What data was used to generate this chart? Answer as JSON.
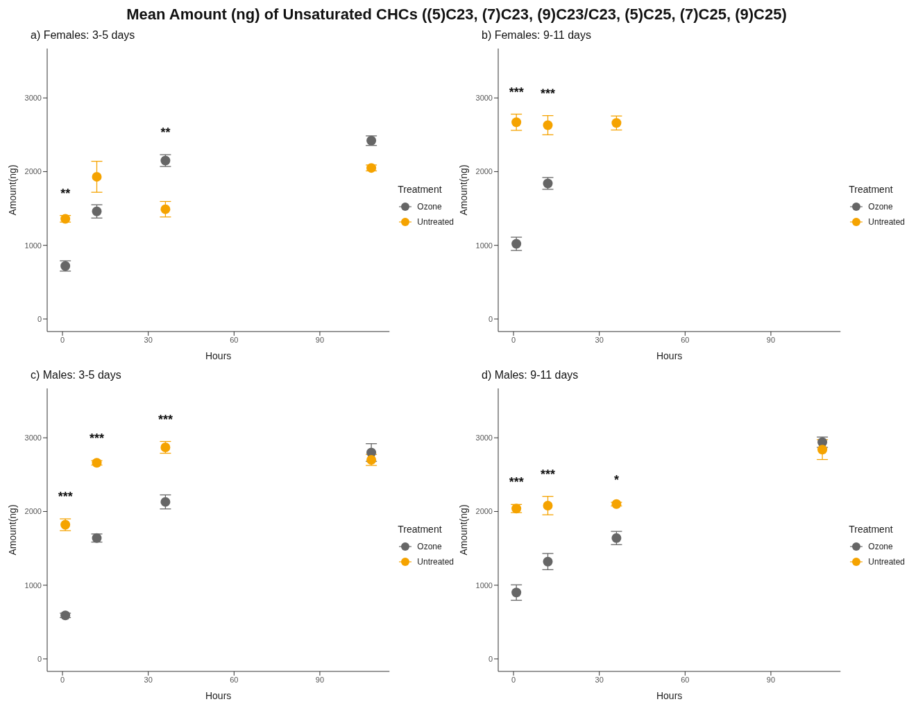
{
  "chart_data": [
    {
      "type": "scatter",
      "title": "Mean Amount (ng) of Unsaturated CHCs ((5)C23, (7)C23, (9)C23/C23, (5)C25, (7)C25, (9)C25)",
      "subtitle": "a) Females: 3-5 days",
      "xlabel": "Hours",
      "ylabel": "Amount(ng)",
      "legend_title": "Treatment",
      "legend": "right",
      "marker": "circle",
      "grid": false,
      "x": [
        1,
        12,
        36,
        108
      ],
      "xlim": [
        -5.35,
        114.35
      ],
      "xticks": [
        0,
        30,
        60,
        90
      ],
      "ylim": [
        -170,
        3670
      ],
      "yticks": [
        0,
        1000,
        2000,
        3000
      ],
      "series": [
        {
          "name": "Ozone",
          "color": "#666666",
          "values": [
            720,
            1460,
            2150,
            2420
          ],
          "errors": [
            70,
            90,
            80,
            65
          ]
        },
        {
          "name": "Untreated",
          "color": "#f5a300",
          "values": [
            1360,
            1930,
            1490,
            2050
          ],
          "errors": [
            45,
            210,
            105,
            40
          ]
        }
      ],
      "annotations": [
        {
          "text": "**",
          "x": 1,
          "y": 1360
        },
        {
          "text": "**",
          "x": 36,
          "y": 2150
        }
      ]
    },
    {
      "type": "scatter",
      "title": "b) Females: 9-11 days",
      "xlabel": "Hours",
      "ylabel": "Amount(ng)",
      "legend_title": "Treatment",
      "legend": "right",
      "marker": "circle",
      "grid": false,
      "x": [
        1,
        12,
        36
      ],
      "xlim": [
        -5.35,
        114.35
      ],
      "xticks": [
        0,
        30,
        60,
        90
      ],
      "ylim": [
        -170,
        3670
      ],
      "yticks": [
        0,
        1000,
        2000,
        3000
      ],
      "series": [
        {
          "name": "Ozone",
          "color": "#666666",
          "values": [
            1020,
            1840,
            null
          ],
          "errors": [
            90,
            80,
            null
          ]
        },
        {
          "name": "Untreated",
          "color": "#f5a300",
          "values": [
            2670,
            2630,
            2660
          ],
          "errors": [
            110,
            130,
            95
          ]
        }
      ],
      "annotations": [
        {
          "text": "***",
          "x": 1,
          "y": 2670
        },
        {
          "text": "***",
          "x": 12,
          "y": 2630
        }
      ]
    },
    {
      "type": "scatter",
      "title": "c) Males: 3-5 days",
      "xlabel": "Hours",
      "ylabel": "Amount(ng)",
      "legend_title": "Treatment",
      "legend": "right",
      "marker": "circle",
      "grid": false,
      "x": [
        1,
        12,
        36,
        108
      ],
      "xlim": [
        -5.35,
        114.35
      ],
      "xticks": [
        0,
        30,
        60,
        90
      ],
      "ylim": [
        -170,
        3670
      ],
      "yticks": [
        0,
        1000,
        2000,
        3000
      ],
      "series": [
        {
          "name": "Ozone",
          "color": "#666666",
          "values": [
            590,
            1640,
            2130,
            2800
          ],
          "errors": [
            30,
            55,
            95,
            120
          ]
        },
        {
          "name": "Untreated",
          "color": "#f5a300",
          "values": [
            1820,
            2660,
            2870,
            2700
          ],
          "errors": [
            80,
            30,
            80,
            75
          ]
        }
      ],
      "annotations": [
        {
          "text": "***",
          "x": 1,
          "y": 1820
        },
        {
          "text": "***",
          "x": 12,
          "y": 2660
        },
        {
          "text": "***",
          "x": 36,
          "y": 2870
        }
      ]
    },
    {
      "type": "scatter",
      "title": "d) Males: 9-11 days",
      "xlabel": "Hours",
      "ylabel": "Amount(ng)",
      "legend_title": "Treatment",
      "legend": "right",
      "marker": "circle",
      "grid": false,
      "x": [
        1,
        12,
        36,
        108
      ],
      "xlim": [
        -5.35,
        114.35
      ],
      "xticks": [
        0,
        30,
        60,
        90
      ],
      "ylim": [
        -170,
        3670
      ],
      "yticks": [
        0,
        1000,
        2000,
        3000
      ],
      "series": [
        {
          "name": "Ozone",
          "color": "#666666",
          "values": [
            900,
            1320,
            1640,
            2940
          ],
          "errors": [
            105,
            110,
            90,
            70
          ]
        },
        {
          "name": "Untreated",
          "color": "#f5a300",
          "values": [
            2040,
            2080,
            2100,
            2840
          ],
          "errors": [
            55,
            125,
            25,
            135
          ]
        }
      ],
      "annotations": [
        {
          "text": "***",
          "x": 1,
          "y": 2040
        },
        {
          "text": "***",
          "x": 12,
          "y": 2080
        },
        {
          "text": "*",
          "x": 36,
          "y": 2100
        }
      ]
    }
  ]
}
